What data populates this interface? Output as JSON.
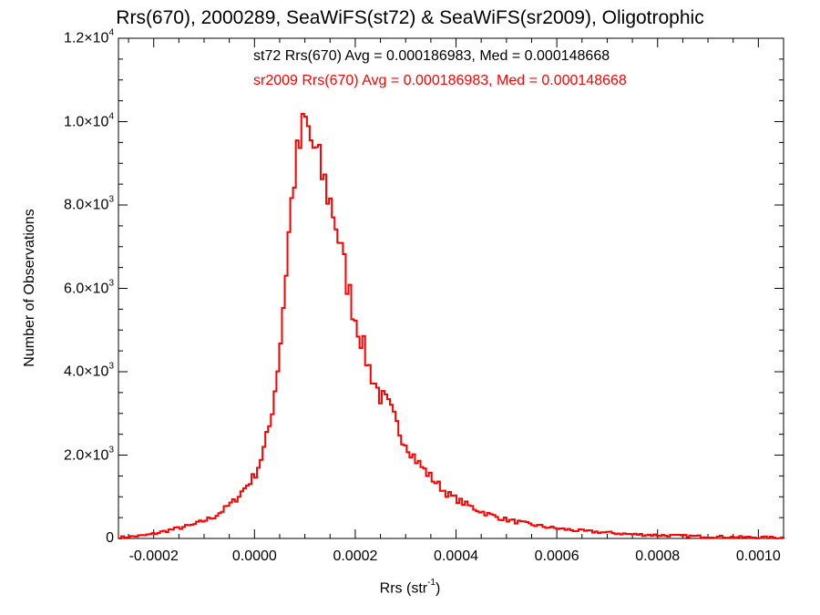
{
  "chart_data": {
    "type": "line",
    "title": "Rrs(670), 2000289, SeaWiFS(st72) & SeaWiFS(sr2009), Oligotrophic",
    "xlabel": {
      "text": "Rrs (str",
      "sup": "-1",
      "suffix": ")"
    },
    "ylabel": "Number of Observations",
    "xlim": [
      -0.00027,
      0.00105
    ],
    "ylim": [
      0,
      12000
    ],
    "x_ticks": [
      {
        "value": -0.0002,
        "label": "-0.0002"
      },
      {
        "value": 0.0,
        "label": "0.0000"
      },
      {
        "value": 0.0002,
        "label": "0.0002"
      },
      {
        "value": 0.0004,
        "label": "0.0004"
      },
      {
        "value": 0.0006,
        "label": "0.0006"
      },
      {
        "value": 0.0008,
        "label": "0.0008"
      },
      {
        "value": 0.001,
        "label": "0.0010"
      }
    ],
    "y_ticks": [
      {
        "value": 0,
        "mant": "0",
        "exp": ""
      },
      {
        "value": 2000,
        "mant": "2.0×10",
        "exp": "3"
      },
      {
        "value": 4000,
        "mant": "4.0×10",
        "exp": "3"
      },
      {
        "value": 6000,
        "mant": "6.0×10",
        "exp": "3"
      },
      {
        "value": 8000,
        "mant": "8.0×10",
        "exp": "3"
      },
      {
        "value": 10000,
        "mant": "1.0×10",
        "exp": "4"
      },
      {
        "value": 12000,
        "mant": "1.2×10",
        "exp": "4"
      }
    ],
    "annotations": [
      {
        "text": "st72 Rrs(670) Avg = 0.000186983, Med = 0.000148668",
        "color": "#000000"
      },
      {
        "text": "sr2009 Rrs(670) Avg = 0.000186983, Med = 0.000148668",
        "color": "#ff0000"
      }
    ],
    "step_histogram": true,
    "series": [
      {
        "name": "st72",
        "color": "#000000"
      },
      {
        "name": "sr2009",
        "color": "#ff0000"
      }
    ],
    "points": [
      [
        -0.00027,
        20
      ],
      [
        -0.00025,
        40
      ],
      [
        -0.00022,
        70
      ],
      [
        -0.0002,
        110
      ],
      [
        -0.00018,
        170
      ],
      [
        -0.00015,
        250
      ],
      [
        -0.00012,
        330
      ],
      [
        -0.0001,
        430
      ],
      [
        -8e-05,
        520
      ],
      [
        -6e-05,
        700
      ],
      [
        -4e-05,
        900
      ],
      [
        -2e-05,
        1200
      ],
      [
        0.0,
        1500
      ],
      [
        1e-05,
        1800
      ],
      [
        2e-05,
        2200
      ],
      [
        3e-05,
        2700
      ],
      [
        4e-05,
        3500
      ],
      [
        5e-05,
        4500
      ],
      [
        6e-05,
        6000
      ],
      [
        7e-05,
        7600
      ],
      [
        8e-05,
        8800
      ],
      [
        9e-05,
        9400
      ],
      [
        0.0001,
        10000
      ],
      [
        0.00011,
        9600
      ],
      [
        0.00012,
        9300
      ],
      [
        0.00013,
        8900
      ],
      [
        0.00014,
        8500
      ],
      [
        0.00015,
        8100
      ],
      [
        0.00016,
        7700
      ],
      [
        0.00017,
        7000
      ],
      [
        0.00018,
        6400
      ],
      [
        0.00019,
        5800
      ],
      [
        0.0002,
        5300
      ],
      [
        0.00021,
        4900
      ],
      [
        0.00022,
        4400
      ],
      [
        0.00023,
        4000
      ],
      [
        0.00024,
        3700
      ],
      [
        0.00025,
        3400
      ],
      [
        0.00026,
        3300
      ],
      [
        0.00027,
        3100
      ],
      [
        0.00028,
        2800
      ],
      [
        0.00029,
        2500
      ],
      [
        0.0003,
        2300
      ],
      [
        0.00031,
        2100
      ],
      [
        0.00032,
        1900
      ],
      [
        0.00034,
        1600
      ],
      [
        0.00036,
        1350
      ],
      [
        0.00038,
        1100
      ],
      [
        0.0004,
        950
      ],
      [
        0.00042,
        820
      ],
      [
        0.00044,
        700
      ],
      [
        0.00046,
        600
      ],
      [
        0.00048,
        520
      ],
      [
        0.0005,
        450
      ],
      [
        0.00055,
        330
      ],
      [
        0.0006,
        240
      ],
      [
        0.00065,
        180
      ],
      [
        0.0007,
        140
      ],
      [
        0.00075,
        100
      ],
      [
        0.0008,
        80
      ],
      [
        0.00085,
        60
      ],
      [
        0.0009,
        45
      ],
      [
        0.00095,
        35
      ],
      [
        0.001,
        25
      ],
      [
        0.00105,
        20
      ]
    ]
  }
}
